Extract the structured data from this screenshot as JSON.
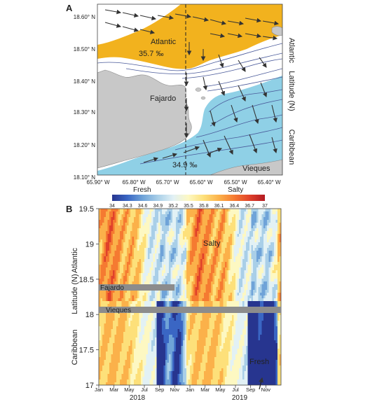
{
  "panel_a": {
    "letter": "A",
    "lat_ticks": [
      "18.60° N",
      "18.50° N",
      "18.40° N",
      "18.30° N",
      "18.20° N",
      "18.10° N"
    ],
    "lon_ticks": [
      "65.90° W",
      "65.80° W",
      "65.70° W",
      "65.60° W",
      "65.50° W",
      "65.40° W"
    ],
    "right_labels": {
      "top": "Atlantic",
      "middle": "Latitude (N)",
      "bottom": "Caribbean"
    },
    "labels": {
      "atlantic": "Atlantic",
      "fajardo": "Fajardo",
      "vieques": "Vieques",
      "salinity_atlantic": "35.7 ‰",
      "salinity_caribbean": "34.9 ‰"
    },
    "colors": {
      "atlantic_water": "#f2b21e",
      "caribbean_water": "#8fd0e6",
      "land": "#c8c8c8",
      "transition": "#ffffff",
      "arrows": "#333333"
    }
  },
  "panel_b": {
    "letter": "B",
    "colorbar": {
      "label_fresh": "Fresh",
      "label_salty": "Salty",
      "ticks": [
        "34",
        "34.3",
        "34.6",
        "34.9",
        "35.2",
        "35.5",
        "35.8",
        "36.1",
        "36.4",
        "36.7",
        "37"
      ],
      "colors": [
        "#27358f",
        "#3a66c4",
        "#6fa3d8",
        "#a9cfe8",
        "#e2f1f5",
        "#fdf8c2",
        "#fde07a",
        "#fbb14a",
        "#f57a31",
        "#e0412a",
        "#b31a22"
      ]
    },
    "labels": {
      "fajardo": "Fajardo",
      "vieques": "Vieques",
      "salty": "Salty",
      "fresh": "Fresh"
    },
    "left_labels": {
      "top": "Atlantic",
      "middle": "Latitude (N)",
      "bottom": "Caribbean"
    }
  },
  "chart_data": [
    {
      "type": "heatmap",
      "panel": "A",
      "description_axes": {
        "x": "longitude",
        "y": "latitude"
      },
      "xlim": [
        -65.9,
        -65.35
      ],
      "ylim": [
        18.1,
        18.65
      ],
      "x_ticks": [
        "65.90° W",
        "65.80° W",
        "65.70° W",
        "65.60° W",
        "65.50° W",
        "65.40° W"
      ],
      "y_ticks": [
        "18.60° N",
        "18.50° N",
        "18.40° N",
        "18.30° N",
        "18.20° N",
        "18.10° N"
      ],
      "annotations": [
        {
          "text": "35.7 ‰",
          "lon": -65.75,
          "lat": 18.48
        },
        {
          "text": "34.9 ‰",
          "lon": -65.615,
          "lat": 18.135
        }
      ]
    },
    {
      "type": "heatmap",
      "panel": "B",
      "x_ticks": [
        "Jan",
        "Mar",
        "May",
        "Jul",
        "Sep",
        "Nov",
        "Jan",
        "Mar",
        "May",
        "Jul",
        "Sep",
        "Nov"
      ],
      "x_year_labels": [
        "2018",
        "2019"
      ],
      "y_ticks": [
        "19.5",
        "19",
        "18.5",
        "18",
        "17.5",
        "17"
      ],
      "ylabel": "Latitude (N)",
      "ylim": [
        17,
        19.5
      ],
      "color_range": [
        34,
        37
      ],
      "series": [
        {
          "latitude_band": "Atlantic",
          "fresh_periods": [
            "Sep-Nov 2018",
            "Sep-Nov 2019"
          ],
          "salty_periods": [
            "Jan-Apr 2018",
            "Jan-May 2019"
          ]
        },
        {
          "latitude_band": "Caribbean",
          "fresh_periods": [
            "Aug-Nov 2018",
            "Aug-Nov 2019"
          ],
          "salty_periods": [
            "Feb-Apr 2018",
            "Mar-May 2019"
          ]
        }
      ]
    }
  ]
}
